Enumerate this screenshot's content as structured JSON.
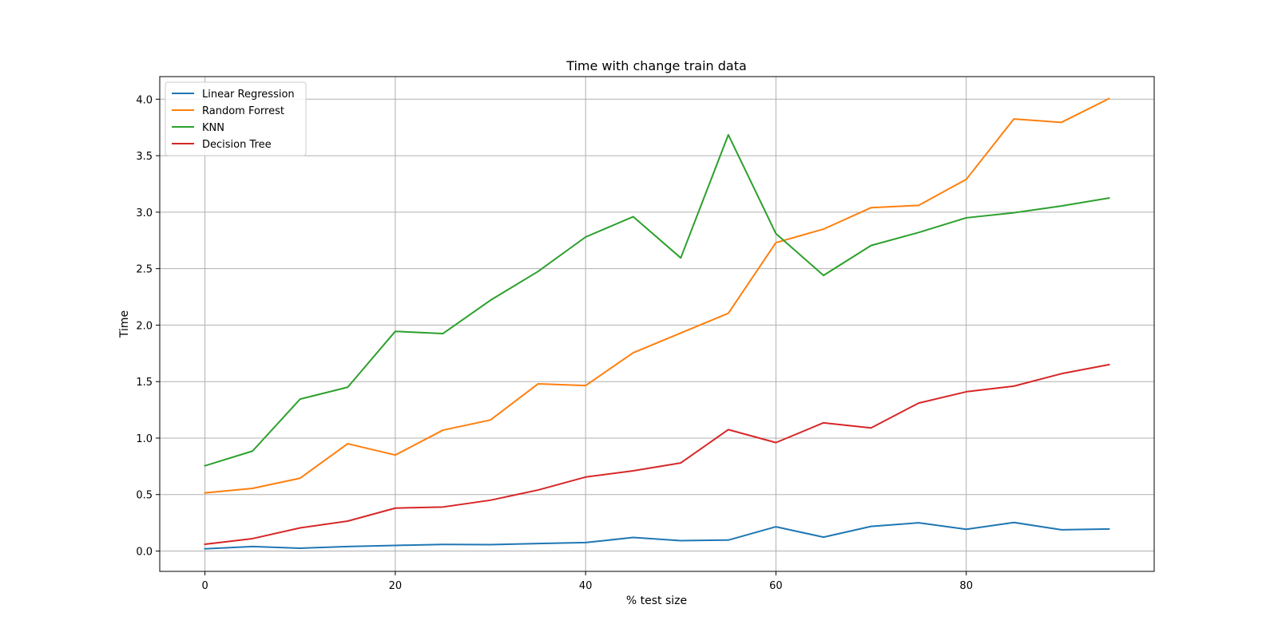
{
  "chart_data": {
    "type": "line",
    "title": "Time with change train data",
    "xlabel": "% test size",
    "ylabel": "Time",
    "xlim": [
      -4.75,
      99.75
    ],
    "ylim": [
      -0.18,
      4.2
    ],
    "xticks": [
      0,
      20,
      40,
      60,
      80
    ],
    "yticks": [
      0.0,
      0.5,
      1.0,
      1.5,
      2.0,
      2.5,
      3.0,
      3.5,
      4.0
    ],
    "xtick_labels": [
      "0",
      "20",
      "40",
      "60",
      "80"
    ],
    "ytick_labels": [
      "0.0",
      "0.5",
      "1.0",
      "1.5",
      "2.0",
      "2.5",
      "3.0",
      "3.5",
      "4.0"
    ],
    "grid": true,
    "legend_position": "top-left",
    "x": [
      0,
      5,
      10,
      15,
      20,
      25,
      30,
      35,
      40,
      45,
      50,
      55,
      60,
      65,
      70,
      75,
      80,
      85,
      90,
      95
    ],
    "series": [
      {
        "name": "Linear Regression",
        "color": "#1f77b4",
        "values": [
          0.02,
          0.04,
          0.025,
          0.04,
          0.05,
          0.058,
          0.057,
          0.066,
          0.075,
          0.12,
          0.092,
          0.097,
          0.215,
          0.123,
          0.218,
          0.25,
          0.193,
          0.253,
          0.188,
          0.195
        ]
      },
      {
        "name": "Random Forrest",
        "color": "#ff7f0e",
        "values": [
          0.515,
          0.555,
          0.645,
          0.95,
          0.85,
          1.07,
          1.16,
          1.48,
          1.465,
          1.755,
          1.93,
          2.105,
          2.73,
          2.85,
          3.04,
          3.06,
          3.29,
          3.825,
          3.795,
          4.005
        ]
      },
      {
        "name": "KNN",
        "color": "#2ca02c",
        "values": [
          0.755,
          0.885,
          1.345,
          1.45,
          1.945,
          1.925,
          2.22,
          2.475,
          2.78,
          2.96,
          2.595,
          3.685,
          2.81,
          2.44,
          2.705,
          2.82,
          2.95,
          2.995,
          3.055,
          3.125
        ]
      },
      {
        "name": "Decision Tree",
        "color": "#d62728",
        "values": [
          0.06,
          0.11,
          0.205,
          0.265,
          0.38,
          0.39,
          0.45,
          0.54,
          0.655,
          0.71,
          0.78,
          1.075,
          0.96,
          1.135,
          1.09,
          1.31,
          1.41,
          1.46,
          1.57,
          1.65
        ]
      }
    ]
  }
}
